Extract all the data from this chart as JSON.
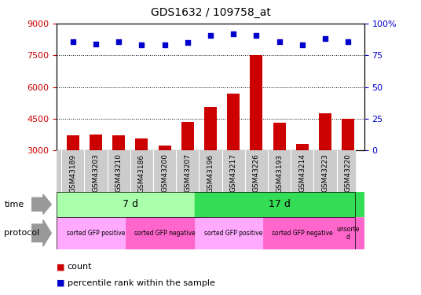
{
  "title": "GDS1632 / 109758_at",
  "samples": [
    "GSM43189",
    "GSM43203",
    "GSM43210",
    "GSM43186",
    "GSM43200",
    "GSM43207",
    "GSM43196",
    "GSM43217",
    "GSM43226",
    "GSM43193",
    "GSM43214",
    "GSM43223",
    "GSM43220"
  ],
  "counts": [
    3700,
    3750,
    3730,
    3550,
    3250,
    4350,
    5050,
    5700,
    7500,
    4300,
    3300,
    4750,
    4500
  ],
  "percentiles": [
    86,
    84,
    86,
    83,
    83,
    85,
    91,
    92,
    91,
    86,
    83,
    88,
    86
  ],
  "ylim_left": [
    3000,
    9000
  ],
  "ylim_right": [
    0,
    100
  ],
  "yticks_left": [
    3000,
    4500,
    6000,
    7500,
    9000
  ],
  "yticks_right": [
    0,
    25,
    50,
    75,
    100
  ],
  "bar_color": "#cc0000",
  "dot_color": "#0000cc",
  "bar_bottom": 3000,
  "time_groups": [
    {
      "label": "7 d",
      "start": 0,
      "end": 6,
      "color": "#aaffaa"
    },
    {
      "label": "17 d",
      "start": 6,
      "end": 13,
      "color": "#33dd55"
    }
  ],
  "protocol_groups": [
    {
      "label": "sorted GFP positive",
      "start": 0,
      "end": 3,
      "color": "#ffaaff"
    },
    {
      "label": "sorted GFP negative",
      "start": 3,
      "end": 6,
      "color": "#ff66cc"
    },
    {
      "label": "sorted GFP positive",
      "start": 6,
      "end": 9,
      "color": "#ffaaff"
    },
    {
      "label": "sorted GFP negative",
      "start": 9,
      "end": 12,
      "color": "#ff66cc"
    },
    {
      "label": "unsorte\nd",
      "start": 12,
      "end": 13,
      "color": "#ff66cc"
    }
  ],
  "time_label": "time",
  "protocol_label": "protocol",
  "legend_count": "count",
  "legend_percentile": "percentile rank within the sample",
  "bg_color": "#ffffff",
  "tick_label_color_left": "#cc0000",
  "tick_label_color_right": "#0000cc",
  "sample_bg": "#cccccc"
}
